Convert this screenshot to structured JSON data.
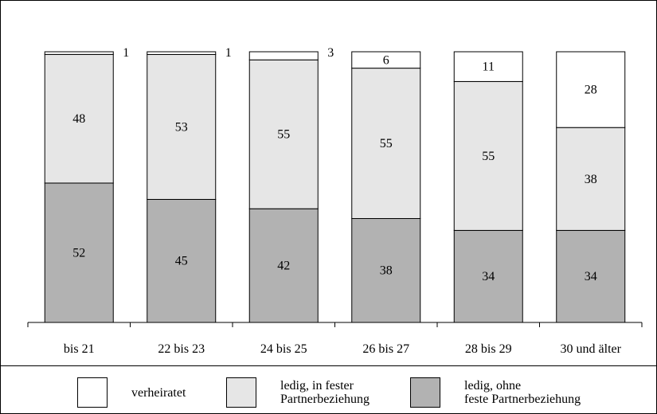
{
  "chart_data": {
    "type": "bar",
    "stacked": true,
    "percent": true,
    "categories": [
      "bis 21",
      "22 bis 23",
      "24 bis 25",
      "26 bis 27",
      "28 bis 29",
      "30 und älter"
    ],
    "series": [
      {
        "name": "ledig, ohne\nfeste Partnerbeziehung",
        "values": [
          52,
          45,
          42,
          38,
          34,
          34
        ],
        "color": "#b2b2b2"
      },
      {
        "name": "ledig, in fester\nPartnerbeziehung",
        "values": [
          48,
          53,
          55,
          55,
          55,
          38
        ],
        "color": "#e6e6e6"
      },
      {
        "name": "verheiratet",
        "values": [
          1,
          1,
          3,
          6,
          11,
          28
        ],
        "color": "#ffffff"
      }
    ],
    "data_labels": true,
    "ylim": [
      0,
      100
    ],
    "grid": false,
    "legend_position": "bottom"
  },
  "legend": {
    "items": [
      {
        "label": "verheiratet",
        "color": "#ffffff"
      },
      {
        "label": "ledig, in fester\nPartnerbeziehung",
        "color": "#e6e6e6"
      },
      {
        "label": "ledig, ohne\nfeste Partnerbeziehung",
        "color": "#b2b2b2"
      }
    ]
  }
}
